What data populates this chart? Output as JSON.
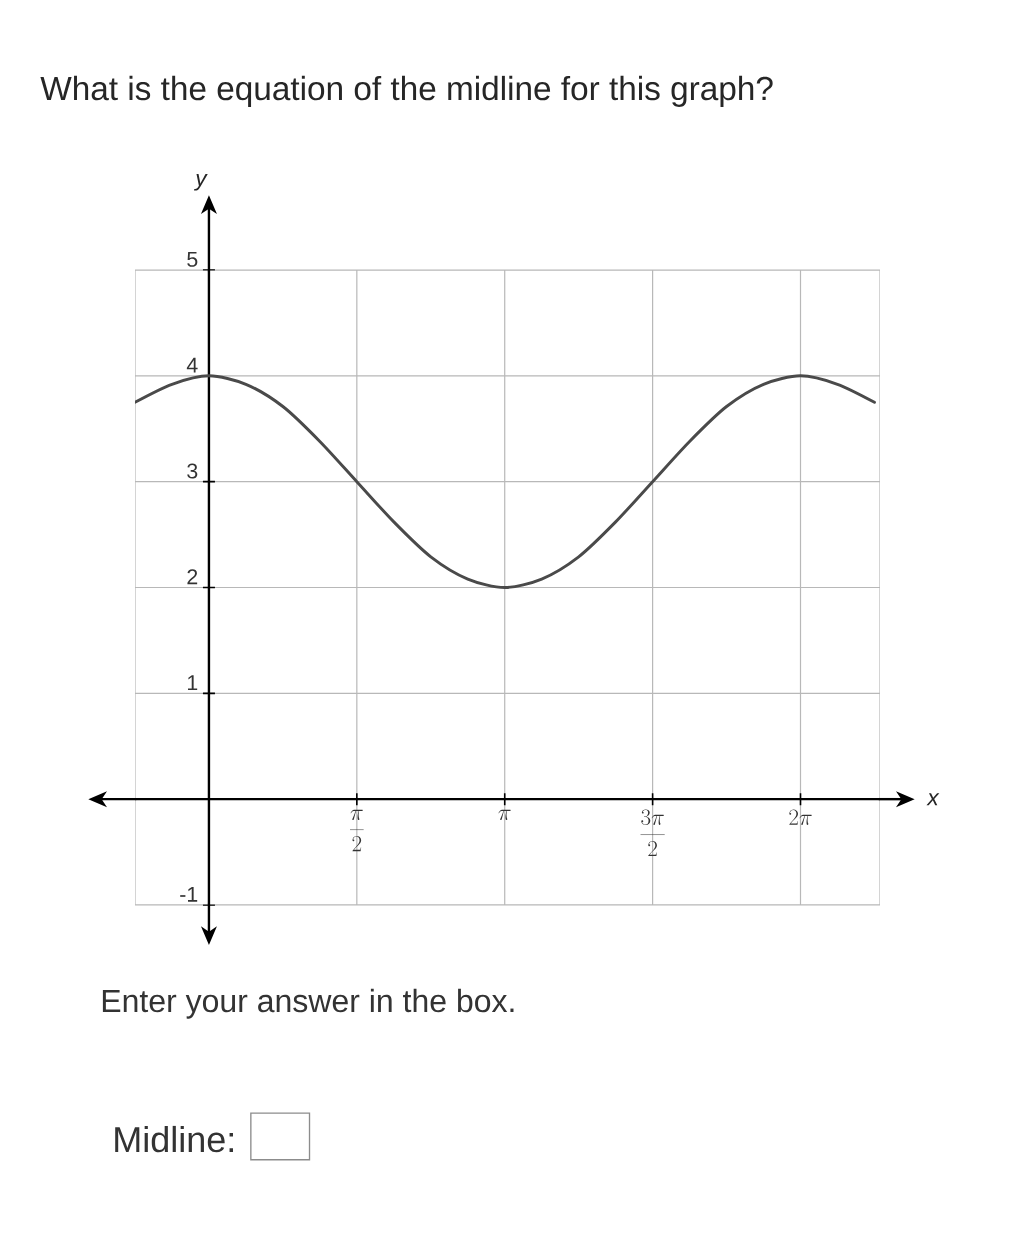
{
  "chart_data": {
    "type": "line",
    "title": "What is the equation of the midline for this graph?",
    "xlabel": "x",
    "ylabel": "y",
    "annotations": [
      "Enter your answer in the box.",
      "Midline:"
    ],
    "categories": [
      null,
      null,
      null,
      null,
      null,
      null,
      "\\frac{\\pi}{2}",
      null,
      null,
      null,
      "\\pi",
      null,
      null,
      null,
      "\\frac{3\\pi}{2}",
      null,
      null,
      null,
      "2\\pi",
      null,
      null
    ],
    "values": [
      3.75,
      3.92,
      4,
      3.92,
      3.71,
      3.38,
      3,
      2.62,
      2.29,
      2.08,
      2,
      2.08,
      2.29,
      2.62,
      3,
      3.38,
      3.71,
      3.92,
      4,
      3.92,
      3.75
    ],
    "color": "#4a4a4a",
    "line_style": "solid",
    "ylim": [
      -1,
      5
    ],
    "yticks": [
      -1,
      1,
      2,
      3,
      4,
      5
    ],
    "grid": true
  }
}
